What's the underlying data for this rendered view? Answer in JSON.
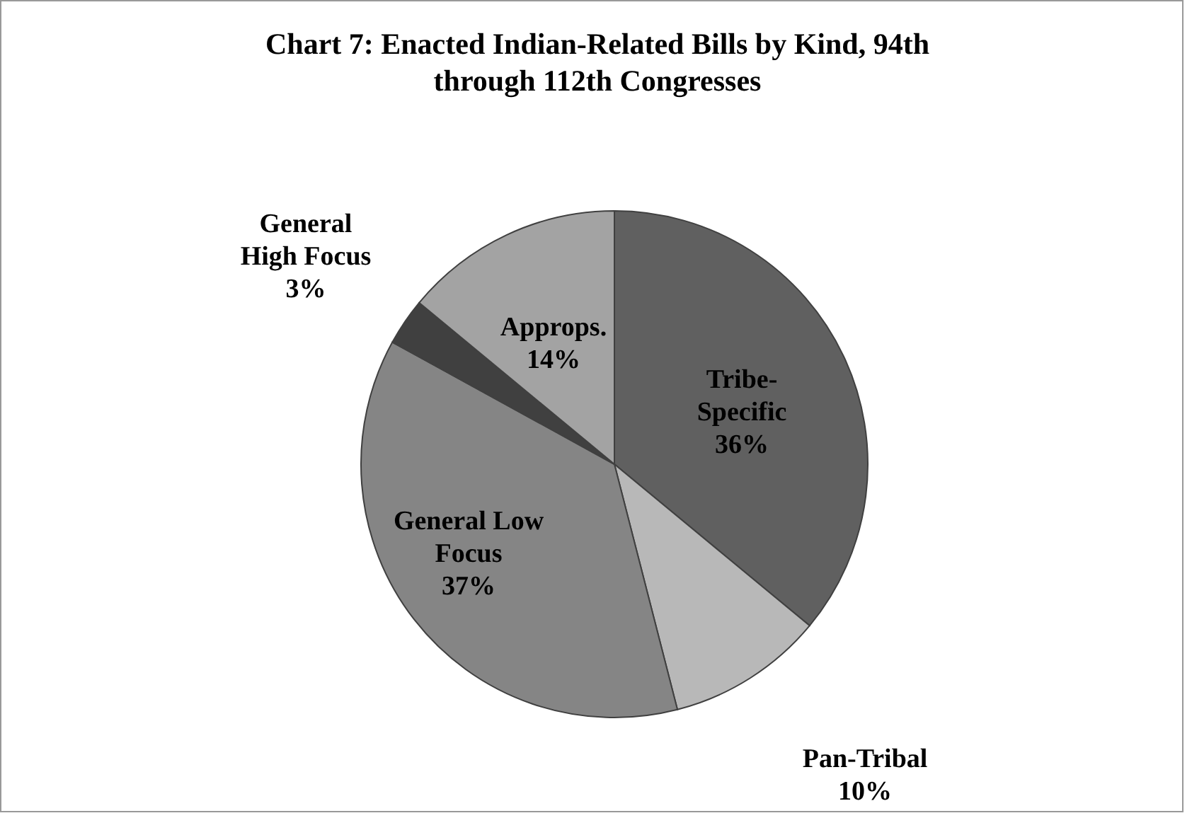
{
  "chart_data": {
    "type": "pie",
    "title": "Chart 7: Enacted Indian-Related Bills by Kind, 94th through 112th Congresses",
    "categories": [
      "Tribe-Specific",
      "Pan-Tribal",
      "General Low Focus",
      "General High Focus",
      "Approps."
    ],
    "values": [
      36,
      10,
      37,
      3,
      14
    ],
    "colors": [
      "#606060",
      "#b8b8b8",
      "#858585",
      "#404040",
      "#a3a3a3"
    ],
    "value_labels": [
      "36%",
      "10%",
      "37%",
      "3%",
      "14%"
    ]
  }
}
